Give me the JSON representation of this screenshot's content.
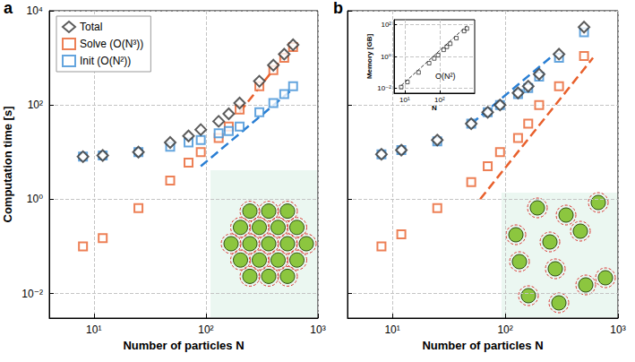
{
  "chart_data": [
    {
      "type": "scatter",
      "panel_label": "a",
      "xlabel": "Number of particles N",
      "ylabel": "Computation time [s]",
      "log": true,
      "grid": true,
      "legend": "upper left",
      "xlim": [
        4,
        1000
      ],
      "ylim": [
        0.003,
        10000
      ],
      "xticks": [
        {
          "value": 10,
          "label": "10¹"
        },
        {
          "value": 100,
          "label": "10²"
        },
        {
          "value": 1000,
          "label": "10³"
        }
      ],
      "yticks": [
        {
          "value": 0.01,
          "label": "10⁻²"
        },
        {
          "value": 1,
          "label": "10⁰"
        },
        {
          "value": 100,
          "label": "10²"
        },
        {
          "value": 10000,
          "label": "10⁴"
        }
      ],
      "x": [
        8,
        12,
        25,
        48,
        70,
        90,
        130,
        160,
        200,
        300,
        400,
        500,
        600
      ],
      "series": [
        {
          "name": "Total",
          "color": "#333333",
          "marker": "diamond",
          "values": [
            8,
            8.5,
            10,
            16,
            22,
            30,
            45,
            65,
            110,
            320,
            700,
            1200,
            1900
          ]
        },
        {
          "name": "Solve (O(N³))",
          "color": "#e8602c",
          "marker": "square",
          "values": [
            0.1,
            0.15,
            0.65,
            2.5,
            6,
            10,
            20,
            35,
            80,
            250,
            550,
            1000,
            1700
          ]
        },
        {
          "name": "Init (O(N²))",
          "color": "#3d8fd6",
          "marker": "square",
          "values": [
            8,
            8.5,
            10,
            13,
            16,
            18,
            25,
            28,
            35,
            70,
            110,
            170,
            250
          ]
        }
      ],
      "fits": [
        {
          "color": "#e8602c",
          "line_style": "dashed",
          "x": [
            200,
            600
          ],
          "values": [
            70,
            1890
          ]
        },
        {
          "color": "#2a7fd4",
          "line_style": "dashed",
          "x": [
            90,
            600
          ],
          "values": [
            5,
            222
          ]
        }
      ]
    },
    {
      "type": "scatter",
      "panel_label": "b",
      "xlabel": "Number of particles N",
      "log": true,
      "grid": true,
      "tick_labels": "x",
      "xlim": [
        4,
        1000
      ],
      "ylim": [
        0.003,
        10000
      ],
      "xticks": [
        {
          "value": 10,
          "label": "10¹"
        },
        {
          "value": 100,
          "label": "10²"
        },
        {
          "value": 1000,
          "label": "10³"
        }
      ],
      "yticks": [
        0.01,
        1,
        100,
        10000
      ],
      "x": [
        8,
        12,
        25,
        50,
        70,
        90,
        130,
        160,
        200,
        300,
        500
      ],
      "series": [
        {
          "color": "#333333",
          "marker": "diamond",
          "values": [
            9,
            11,
            18,
            40,
            70,
            100,
            180,
            250,
            450,
            1200,
            4500
          ]
        },
        {
          "color": "#e8602c",
          "marker": "square",
          "values": [
            0.1,
            0.18,
            0.65,
            2.3,
            5,
            10,
            20,
            40,
            100,
            250,
            1100
          ]
        },
        {
          "color": "#3d8fd6",
          "marker": "square",
          "values": [
            9,
            11,
            17,
            40,
            70,
            100,
            170,
            230,
            400,
            1000,
            3500
          ]
        }
      ],
      "fits": [
        {
          "color": "#2a7fd4",
          "line_style": "dashed",
          "x": [
            50,
            250
          ],
          "values": [
            40,
            1000
          ]
        },
        {
          "color": "#e8602c",
          "line_style": "dashed",
          "x": [
            60,
            600
          ],
          "values": [
            1,
            1000
          ]
        }
      ]
    },
    {
      "type": "scatter",
      "xlabel": "N",
      "ylabel": "Memory [GB]",
      "log": true,
      "grid": true,
      "xlim": [
        5,
        1000
      ],
      "ylim": [
        0.005,
        200
      ],
      "xticks": [
        {
          "value": 10,
          "label": "10¹"
        },
        {
          "value": 100,
          "label": "10²"
        }
      ],
      "yticks": [
        {
          "value": 0.01,
          "label": "10⁻²"
        },
        {
          "value": 1,
          "label": "10⁰"
        },
        {
          "value": 100,
          "label": "10²"
        }
      ],
      "x": [
        8,
        12,
        25,
        50,
        70,
        90,
        130,
        160,
        200,
        300,
        500,
        600
      ],
      "series": [
        {
          "color": "#333333",
          "marker": "square",
          "values": [
            0.012,
            0.025,
            0.1,
            0.38,
            0.75,
            1.2,
            2.6,
            4,
            6.3,
            14,
            39,
            56
          ]
        }
      ],
      "fits": [
        {
          "color": "#333333",
          "line_style": "dashed",
          "x": [
            8,
            600
          ],
          "values": [
            0.015,
            84
          ]
        }
      ],
      "annotations": [
        {
          "text": "O(N²)"
        }
      ]
    }
  ]
}
